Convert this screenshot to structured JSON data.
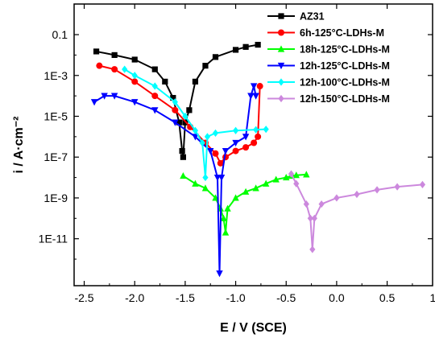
{
  "chart_data": {
    "type": "line",
    "xlabel": "E / V (SCE)",
    "ylabel": "i / A·cm⁻²",
    "xlim": [
      -2.6,
      0.95
    ],
    "ylim_log10": [
      -13.3,
      0.5
    ],
    "y_scale": "log",
    "x_ticks": [
      -2.5,
      -2.0,
      -1.5,
      -1.0,
      -0.5,
      0.0,
      0.5,
      1.0
    ],
    "x_tick_labels": [
      "-2.5",
      "-2.0",
      "-1.5",
      "-1.0",
      "-0.5",
      "0.0",
      "0.5",
      "1.0"
    ],
    "y_ticks": [
      0.1,
      0.001,
      1e-05,
      1e-07,
      1e-09,
      1e-11
    ],
    "y_tick_labels": [
      "0.1",
      "1E-3",
      "1E-5",
      "1E-7",
      "1E-9",
      "1E-11"
    ],
    "legend_position": "top-right",
    "series": [
      {
        "name": "AZ31",
        "color": "#000000",
        "marker": "square",
        "x": [
          -2.38,
          -2.2,
          -2.0,
          -1.8,
          -1.7,
          -1.62,
          -1.56,
          -1.53,
          -1.52,
          -1.5,
          -1.46,
          -1.4,
          -1.3,
          -1.2,
          -1.0,
          -0.9,
          -0.78
        ],
        "y": [
          0.015,
          0.01,
          0.006,
          0.002,
          0.0005,
          8e-05,
          5e-06,
          2e-07,
          1e-07,
          5e-06,
          2e-05,
          0.0005,
          0.003,
          0.008,
          0.018,
          0.025,
          0.032
        ]
      },
      {
        "name": "6h-125°C-LDHs-M",
        "color": "#ff0000",
        "marker": "circle",
        "x": [
          -2.35,
          -2.2,
          -2.0,
          -1.8,
          -1.6,
          -1.45,
          -1.3,
          -1.2,
          -1.15,
          -1.1,
          -1.0,
          -0.9,
          -0.82,
          -0.78,
          -0.76
        ],
        "y": [
          0.003,
          0.002,
          0.0005,
          0.0001,
          2e-05,
          3e-06,
          5e-07,
          1.5e-07,
          5e-08,
          1e-07,
          2e-07,
          3e-07,
          5e-07,
          1e-06,
          0.0003
        ]
      },
      {
        "name": "18h-125°C-LDHs-M",
        "color": "#00ff00",
        "marker": "triangle",
        "x": [
          -1.52,
          -1.4,
          -1.3,
          -1.2,
          -1.15,
          -1.12,
          -1.1,
          -1.08,
          -1.0,
          -0.9,
          -0.8,
          -0.7,
          -0.6,
          -0.5,
          -0.45,
          -0.4,
          -0.3
        ],
        "y": [
          1.2e-08,
          5e-09,
          3e-09,
          1e-09,
          3e-10,
          1e-10,
          2e-11,
          3e-10,
          1e-09,
          2e-09,
          3e-09,
          5e-09,
          8e-09,
          1e-08,
          1.2e-08,
          1.3e-08,
          1.4e-08
        ]
      },
      {
        "name": "12h-125°C-LDHs-M",
        "color": "#0000ff",
        "marker": "triangle-down",
        "x": [
          -2.4,
          -2.3,
          -2.2,
          -2.0,
          -1.8,
          -1.6,
          -1.4,
          -1.25,
          -1.18,
          -1.16,
          -1.14,
          -1.1,
          -1.0,
          -0.9,
          -0.85,
          -0.82,
          -0.8
        ],
        "y": [
          5e-05,
          0.0001,
          0.0001,
          5e-05,
          2e-05,
          5e-06,
          1e-06,
          2e-07,
          1e-08,
          2e-13,
          1e-08,
          2e-07,
          5e-07,
          1e-06,
          0.0001,
          0.0003,
          0.0001
        ]
      },
      {
        "name": "12h-100°C-LDHs-M",
        "color": "#00ffff",
        "marker": "diamond",
        "x": [
          -2.1,
          -2.0,
          -1.8,
          -1.6,
          -1.5,
          -1.4,
          -1.33,
          -1.3,
          -1.28,
          -1.2,
          -1.0,
          -0.8,
          -0.7
        ],
        "y": [
          0.002,
          0.001,
          0.0003,
          5e-05,
          1e-05,
          2e-06,
          5e-07,
          1e-08,
          1e-06,
          1.5e-06,
          2e-06,
          2.2e-06,
          2.3e-06
        ]
      },
      {
        "name": "12h-150°C-LDHs-M",
        "color": "#cc88dd",
        "marker": "diamond",
        "x": [
          -0.45,
          -0.4,
          -0.3,
          -0.26,
          -0.24,
          -0.22,
          -0.15,
          0.0,
          0.2,
          0.4,
          0.6,
          0.85
        ],
        "y": [
          1.5e-08,
          5e-09,
          5e-10,
          1e-10,
          3e-12,
          1e-10,
          5e-10,
          1e-09,
          1.5e-09,
          2.5e-09,
          3.5e-09,
          4.5e-09
        ]
      }
    ]
  }
}
